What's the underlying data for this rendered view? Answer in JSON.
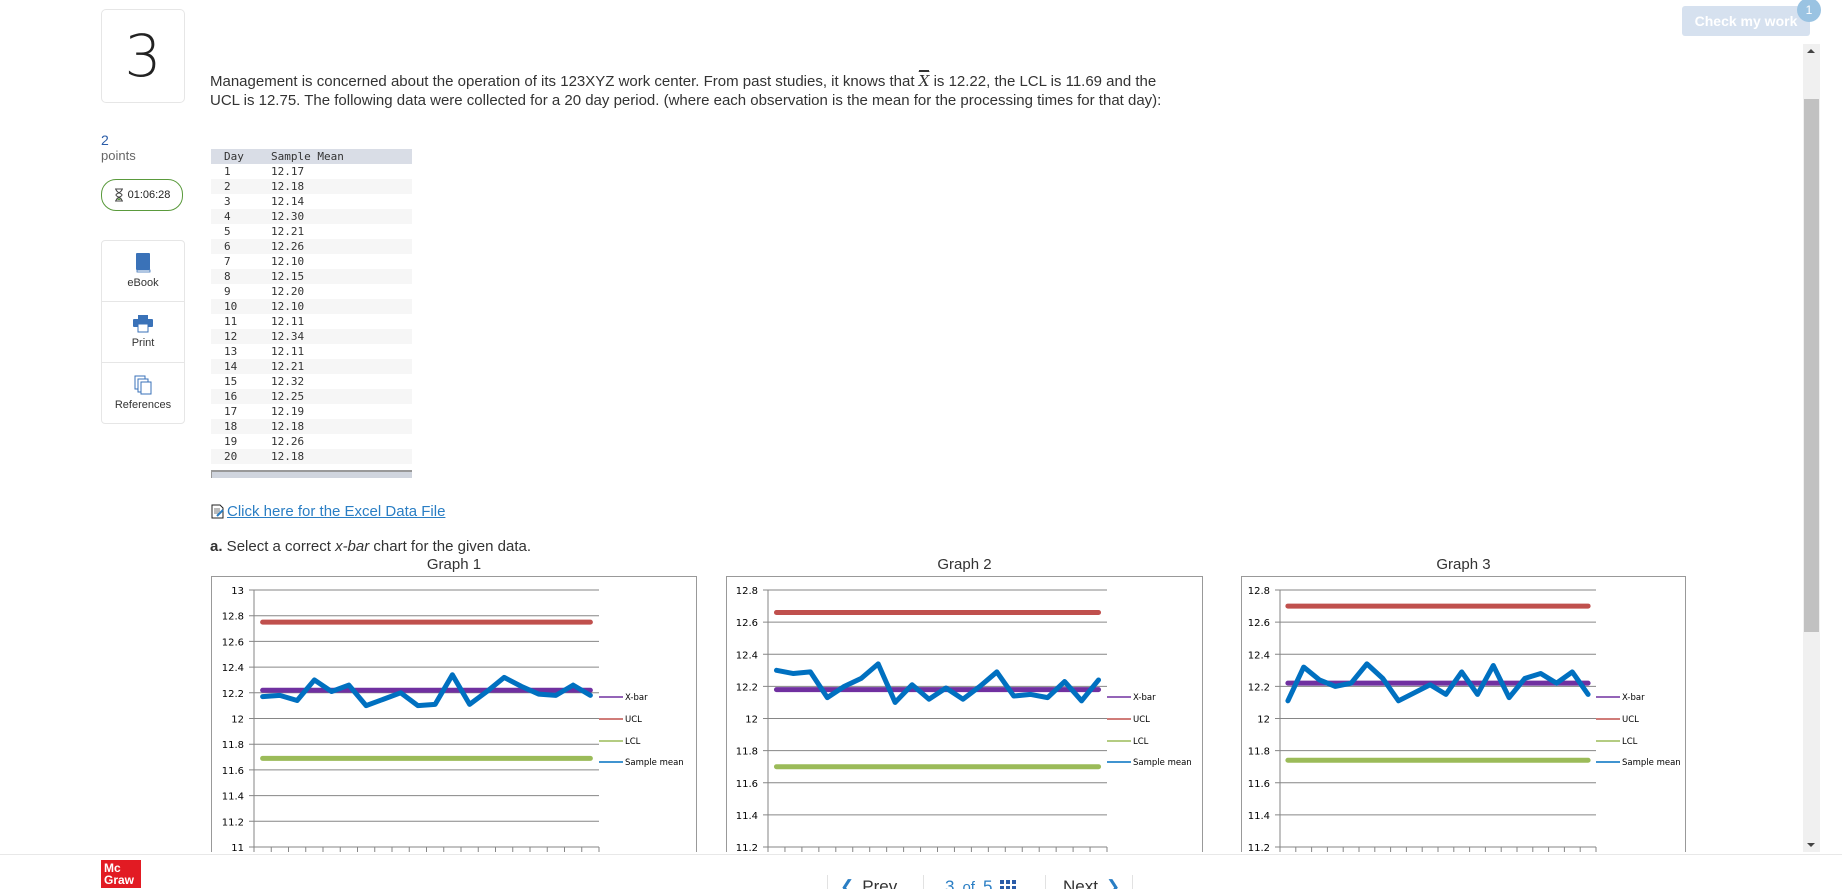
{
  "question": {
    "number": "3",
    "points_value": "2",
    "points_label": "points",
    "timer": "01:06:28",
    "text_before": "Management is concerned about the operation of its 123XYZ work center. From past studies, it knows that ",
    "xbar_symbol": "X",
    "text_after": " is 12.22, the LCL is 11.69 and the UCL is 12.75. The following data were collected for a 20 day period. (where each observation is the mean for the processing times for that day):",
    "excel_link": " Click here for the Excel Data File",
    "part_a_prefix": "a.",
    "part_a_text1": " Select a correct ",
    "part_a_italic": "x-bar",
    "part_a_text2": " chart for the given data."
  },
  "tools": [
    {
      "label": "eBook",
      "icon": "book-icon"
    },
    {
      "label": "Print",
      "icon": "printer-icon"
    },
    {
      "label": "References",
      "icon": "references-icon"
    }
  ],
  "table": {
    "headers": [
      "Day",
      "Sample Mean"
    ],
    "rows": [
      [
        "1",
        "12.17"
      ],
      [
        "2",
        "12.18"
      ],
      [
        "3",
        "12.14"
      ],
      [
        "4",
        "12.30"
      ],
      [
        "5",
        "12.21"
      ],
      [
        "6",
        "12.26"
      ],
      [
        "7",
        "12.10"
      ],
      [
        "8",
        "12.15"
      ],
      [
        "9",
        "12.20"
      ],
      [
        "10",
        "12.10"
      ],
      [
        "11",
        "12.11"
      ],
      [
        "12",
        "12.34"
      ],
      [
        "13",
        "12.11"
      ],
      [
        "14",
        "12.21"
      ],
      [
        "15",
        "12.32"
      ],
      [
        "16",
        "12.25"
      ],
      [
        "17",
        "12.19"
      ],
      [
        "18",
        "12.18"
      ],
      [
        "19",
        "12.26"
      ],
      [
        "20",
        "12.18"
      ]
    ]
  },
  "header": {
    "check_label": "Check my work",
    "badge": "1"
  },
  "footer": {
    "logo": "Mc Graw",
    "prev": "Prev",
    "page_current": "3",
    "page_of": "of",
    "page_total": "5",
    "next": "Next"
  },
  "colors": {
    "xbar": "#7030a0",
    "ucl": "#c0504d",
    "lcl": "#9bbb59",
    "sample": "#0070c0",
    "accent": "#2a7ec4"
  },
  "chart_data": [
    {
      "type": "line",
      "title": "Graph 1",
      "ylim": [
        11,
        13
      ],
      "yticks": [
        "13",
        "12.8",
        "12.6",
        "12.4",
        "12.2",
        "12",
        "11.8",
        "11.6",
        "11.4",
        "11.2",
        "11"
      ],
      "grid": true,
      "legend": "right",
      "series": [
        {
          "name": "X-bar",
          "values": [
            12.22
          ]
        },
        {
          "name": "UCL",
          "values": [
            12.75
          ]
        },
        {
          "name": "LCL",
          "values": [
            11.69
          ]
        },
        {
          "name": "Sample mean",
          "values": [
            12.17,
            12.18,
            12.14,
            12.3,
            12.21,
            12.26,
            12.1,
            12.15,
            12.2,
            12.1,
            12.11,
            12.34,
            12.11,
            12.21,
            12.32,
            12.25,
            12.19,
            12.18,
            12.26,
            12.18
          ]
        }
      ]
    },
    {
      "type": "line",
      "title": "Graph 2",
      "ylim": [
        11.2,
        12.8
      ],
      "yticks": [
        "12.8",
        "12.6",
        "12.4",
        "12.2",
        "12",
        "11.8",
        "11.6",
        "11.4",
        "11.2"
      ],
      "grid": true,
      "legend": "right",
      "series": [
        {
          "name": "X-bar",
          "values": [
            12.18
          ]
        },
        {
          "name": "UCL",
          "values": [
            12.66
          ]
        },
        {
          "name": "LCL",
          "values": [
            11.7
          ]
        },
        {
          "name": "Sample mean",
          "values": [
            12.3,
            12.28,
            12.29,
            12.13,
            12.2,
            12.25,
            12.34,
            12.1,
            12.21,
            12.12,
            12.19,
            12.12,
            12.2,
            12.29,
            12.14,
            12.15,
            12.13,
            12.23,
            12.11,
            12.24
          ]
        }
      ]
    },
    {
      "type": "line",
      "title": "Graph 3",
      "ylim": [
        11.2,
        12.8
      ],
      "yticks": [
        "12.8",
        "12.6",
        "12.4",
        "12.2",
        "12",
        "11.8",
        "11.6",
        "11.4",
        "11.2"
      ],
      "grid": true,
      "legend": "right",
      "series": [
        {
          "name": "X-bar",
          "values": [
            12.22
          ]
        },
        {
          "name": "UCL",
          "values": [
            12.7
          ]
        },
        {
          "name": "LCL",
          "values": [
            11.74
          ]
        },
        {
          "name": "Sample mean",
          "values": [
            12.11,
            12.32,
            12.24,
            12.2,
            12.22,
            12.34,
            12.25,
            12.11,
            12.16,
            12.21,
            12.15,
            12.29,
            12.15,
            12.33,
            12.13,
            12.25,
            12.28,
            12.22,
            12.29,
            12.15
          ]
        }
      ]
    }
  ]
}
